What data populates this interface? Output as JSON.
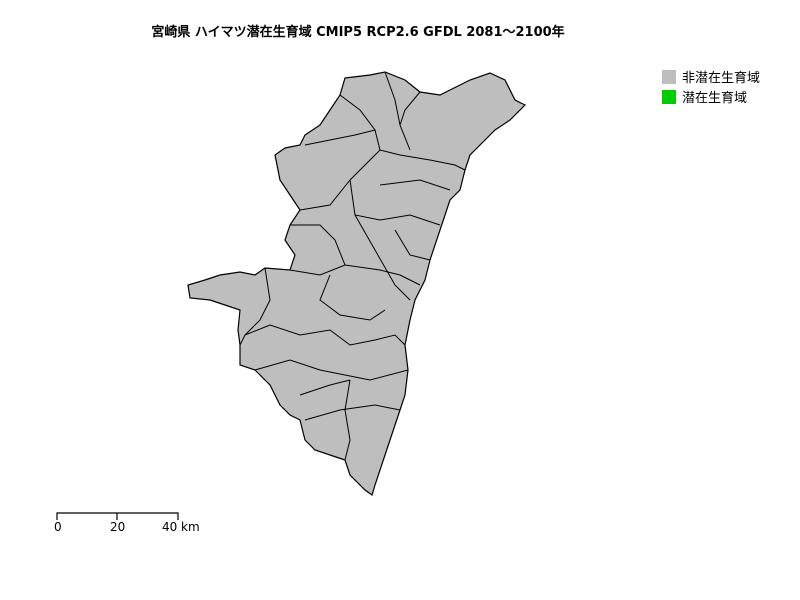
{
  "title": "宮崎県 ハイマツ潜在生育域 CMIP5 RCP2.6 GFDL 2081～2100年",
  "legend": [
    {
      "label": "非潜在生育域",
      "color": "#bebebe"
    },
    {
      "label": "潜在生育域",
      "color": "#00cd00"
    }
  ],
  "map": {
    "fill_color": "#bebebe",
    "border_color": "#000000",
    "potential_habitat_shown": false
  },
  "scalebar": {
    "ticks": [
      "0",
      "20",
      "40"
    ],
    "unit": "km"
  }
}
